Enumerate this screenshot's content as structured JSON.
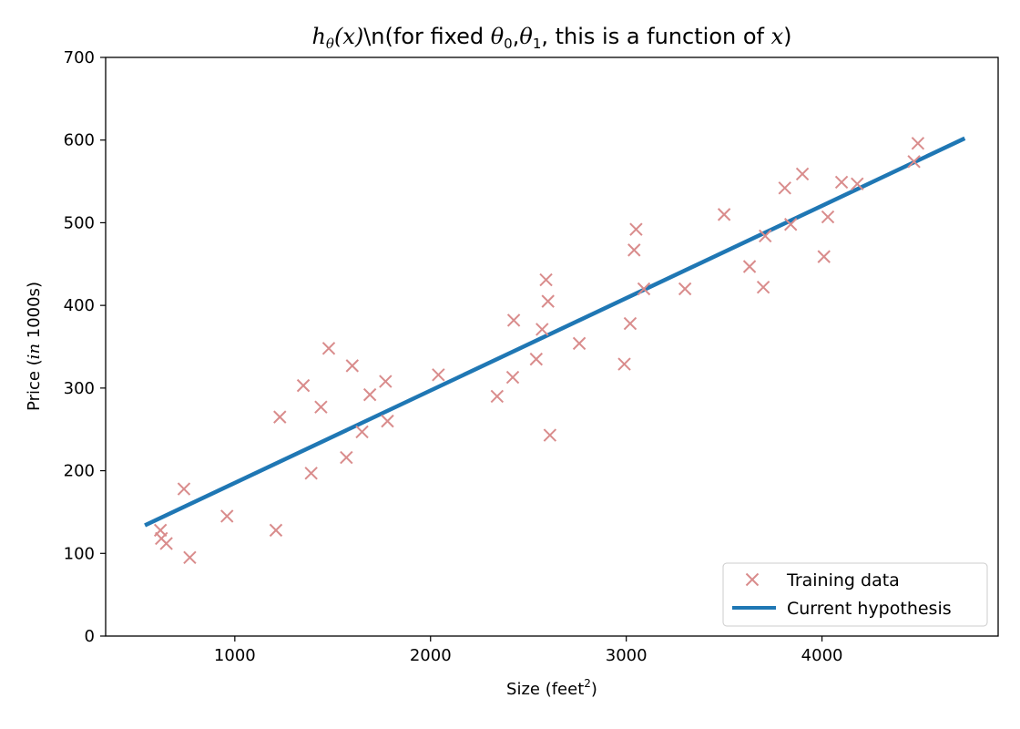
{
  "chart_data": {
    "type": "scatter",
    "title": {
      "func": "h",
      "func_sub": "θ",
      "func_arg": "(x)",
      "middle": "\\n(for fixed ",
      "theta0": "θ",
      "theta0_sub": "0",
      "comma": ",",
      "theta1": "θ",
      "theta1_sub": "1",
      "after": ", this is a function of ",
      "var": "x",
      "close": ")"
    },
    "xlabel": {
      "text": "Size (feet",
      "sup": "2",
      "close": ")"
    },
    "ylabel": {
      "pre": "Price (",
      "ital": "in",
      "post": " 1000s)"
    },
    "xlim": [
      340,
      4900
    ],
    "ylim": [
      0,
      700
    ],
    "xticks": [
      1000,
      2000,
      3000,
      4000
    ],
    "yticks": [
      0,
      100,
      200,
      300,
      400,
      500,
      600,
      700
    ],
    "grid": false,
    "legend_position": "bottom-right",
    "colors": {
      "scatter": "#d98c8c",
      "line": "#1f77b4"
    },
    "series": [
      {
        "name": "Training data",
        "kind": "scatter",
        "marker": "x",
        "x": [
          620,
          625,
          650,
          740,
          770,
          960,
          1210,
          1230,
          1350,
          1390,
          1440,
          1480,
          1570,
          1600,
          1650,
          1690,
          1770,
          1780,
          2040,
          2340,
          2420,
          2425,
          2540,
          2570,
          2590,
          2600,
          2610,
          2760,
          2990,
          3020,
          3040,
          3050,
          3090,
          3300,
          3500,
          3630,
          3700,
          3710,
          3810,
          3840,
          3900,
          4010,
          4030,
          4100,
          4180,
          4470,
          4490
        ],
        "y": [
          128,
          118,
          112,
          178,
          95,
          145,
          128,
          265,
          303,
          197,
          277,
          348,
          216,
          327,
          247,
          292,
          308,
          260,
          316,
          290,
          313,
          382,
          335,
          371,
          431,
          405,
          243,
          354,
          329,
          378,
          467,
          492,
          420,
          420,
          510,
          447,
          422,
          484,
          542,
          498,
          559,
          459,
          507,
          549,
          547,
          574,
          596
        ]
      },
      {
        "name": "Current hypothesis",
        "kind": "line",
        "x": [
          550,
          4720
        ],
        "y": [
          135,
          601
        ]
      }
    ]
  }
}
